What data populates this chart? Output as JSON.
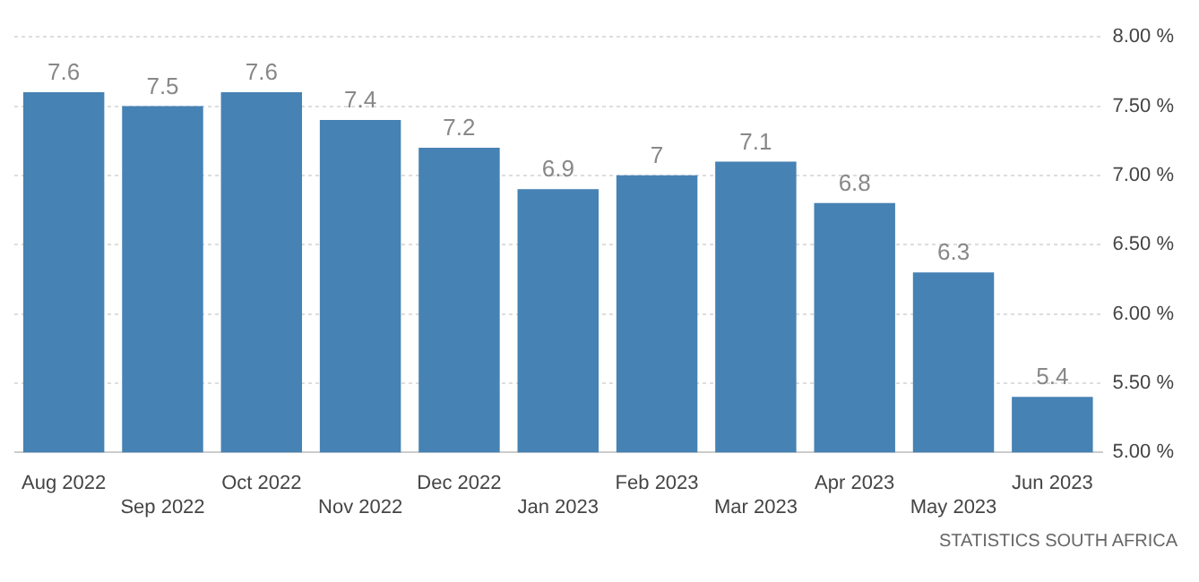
{
  "chart_data": {
    "type": "bar",
    "categories": [
      "Aug 2022",
      "Sep 2022",
      "Oct 2022",
      "Nov 2022",
      "Dec 2022",
      "Jan 2023",
      "Feb 2023",
      "Mar 2023",
      "Apr 2023",
      "May 2023",
      "Jun 2023"
    ],
    "values": [
      7.6,
      7.5,
      7.6,
      7.4,
      7.2,
      6.9,
      7,
      7.1,
      6.8,
      6.3,
      5.4
    ],
    "color": "#4682b4",
    "ylim": [
      5,
      8
    ],
    "yticks": [
      {
        "value": 5,
        "label": "5.00 %"
      },
      {
        "value": 5.5,
        "label": "5.50 %"
      },
      {
        "value": 6,
        "label": "6.00 %"
      },
      {
        "value": 6.5,
        "label": "6.50 %"
      },
      {
        "value": 7,
        "label": "7.00 %"
      },
      {
        "value": 7.5,
        "label": "7.50 %"
      },
      {
        "value": 8,
        "label": "8.00 %"
      }
    ],
    "grid": "y",
    "data_labels": true,
    "annotations": [
      "STATISTICS SOUTH AFRICA"
    ]
  }
}
